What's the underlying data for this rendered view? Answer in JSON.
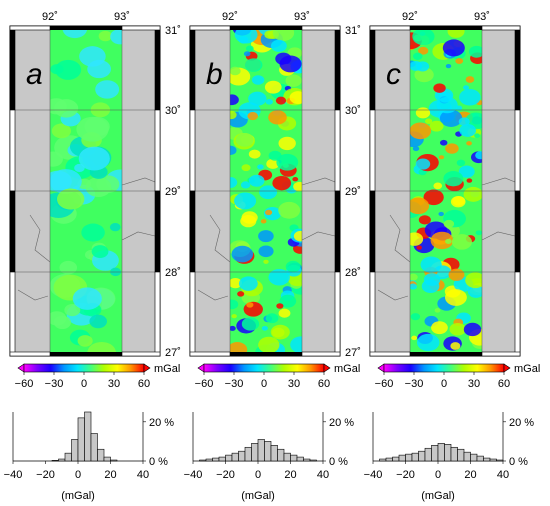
{
  "panels": [
    {
      "letter": "a",
      "lon_labels": [
        "92˚",
        "93˚"
      ],
      "show_lat_labels": true,
      "variance": "low"
    },
    {
      "letter": "b",
      "lon_labels": [
        "92˚",
        "93˚"
      ],
      "show_lat_labels": true,
      "variance": "high"
    },
    {
      "letter": "c",
      "lon_labels": [
        "92˚",
        "93˚"
      ],
      "show_lat_labels": false,
      "variance": "high"
    }
  ],
  "lat_labels": [
    "31˚",
    "30˚",
    "29˚",
    "28˚",
    "27˚"
  ],
  "colorbar": {
    "unit": "mGal",
    "ticks": [
      "−60",
      "−30",
      "0",
      "30",
      "60"
    ],
    "colors": [
      "#ff00ff",
      "#7a00ff",
      "#1a00ff",
      "#0096ff",
      "#00e6ff",
      "#40ff80",
      "#b0ff00",
      "#ffff00",
      "#ff9600",
      "#ff0000"
    ]
  },
  "histograms": [
    {
      "x_ticks": [
        "−40",
        "−20",
        "0",
        "20",
        "40"
      ],
      "y_ticks": [
        "20 %",
        "0 %"
      ],
      "xlabel": "(mGal)",
      "bin_edges": [
        -40,
        -36,
        -32,
        -28,
        -24,
        -20,
        -16,
        -12,
        -8,
        -4,
        0,
        4,
        8,
        12,
        16,
        20,
        24,
        28,
        32,
        36,
        40
      ],
      "values": [
        0,
        0,
        0,
        0,
        0,
        0,
        0.3,
        1,
        4,
        11,
        22,
        25,
        14,
        6,
        2,
        0.5,
        0,
        0,
        0,
        0
      ]
    },
    {
      "x_ticks": [
        "−40",
        "−20",
        "0",
        "20",
        "40"
      ],
      "y_ticks": [
        "20 %",
        "0 %"
      ],
      "xlabel": "(mGal)",
      "bin_edges": [
        -40,
        -36,
        -32,
        -28,
        -24,
        -20,
        -16,
        -12,
        -8,
        -4,
        0,
        4,
        8,
        12,
        16,
        20,
        24,
        28,
        32,
        36,
        40
      ],
      "values": [
        0,
        0.5,
        1,
        1.5,
        2,
        3,
        4,
        5,
        7,
        9,
        11,
        10,
        8,
        6,
        4,
        3,
        2,
        1,
        0.5,
        0
      ]
    },
    {
      "x_ticks": [
        "−40",
        "−20",
        "0",
        "20",
        "40"
      ],
      "y_ticks": [
        "20 %",
        "0 %"
      ],
      "xlabel": "(mGal)",
      "bin_edges": [
        -40,
        -36,
        -32,
        -28,
        -24,
        -20,
        -16,
        -12,
        -8,
        -4,
        0,
        4,
        8,
        12,
        16,
        20,
        24,
        28,
        32,
        36,
        40
      ],
      "values": [
        0,
        1,
        1.5,
        2,
        3,
        3.5,
        4,
        5,
        6.5,
        8,
        9,
        8.5,
        7,
        6,
        4.5,
        3.5,
        2.5,
        1.5,
        1,
        0.5
      ]
    }
  ],
  "chart_data": [
    {
      "type": "bar",
      "xlabel": "(mGal)",
      "ylabel": "",
      "x_range": [
        -40,
        40
      ],
      "y_range": [
        0,
        25
      ],
      "categories": [
        "-40..-36",
        "-36..-32",
        "-32..-28",
        "-28..-24",
        "-24..-20",
        "-20..-16",
        "-16..-12",
        "-12..-8",
        "-8..-4",
        "-4..0",
        "0..4",
        "4..8",
        "8..12",
        "12..16",
        "16..20",
        "20..24",
        "24..28",
        "28..32",
        "32..36",
        "36..40"
      ],
      "values": [
        0,
        0,
        0,
        0,
        0,
        0,
        0.3,
        1,
        4,
        11,
        22,
        25,
        14,
        6,
        2,
        0.5,
        0,
        0,
        0,
        0
      ]
    },
    {
      "type": "bar",
      "xlabel": "(mGal)",
      "ylabel": "",
      "x_range": [
        -40,
        40
      ],
      "y_range": [
        0,
        25
      ],
      "categories": [
        "-40..-36",
        "-36..-32",
        "-32..-28",
        "-28..-24",
        "-24..-20",
        "-20..-16",
        "-16..-12",
        "-12..-8",
        "-8..-4",
        "-4..0",
        "0..4",
        "4..8",
        "8..12",
        "12..16",
        "16..20",
        "20..24",
        "24..28",
        "28..32",
        "32..36",
        "36..40"
      ],
      "values": [
        0,
        0.5,
        1,
        1.5,
        2,
        3,
        4,
        5,
        7,
        9,
        11,
        10,
        8,
        6,
        4,
        3,
        2,
        1,
        0.5,
        0
      ]
    },
    {
      "type": "bar",
      "xlabel": "(mGal)",
      "ylabel": "",
      "x_range": [
        -40,
        40
      ],
      "y_range": [
        0,
        25
      ],
      "categories": [
        "-40..-36",
        "-36..-32",
        "-32..-28",
        "-28..-24",
        "-24..-20",
        "-20..-16",
        "-16..-12",
        "-12..-8",
        "-8..-4",
        "-4..0",
        "0..4",
        "4..8",
        "8..12",
        "12..16",
        "16..20",
        "20..24",
        "24..28",
        "28..32",
        "32..36",
        "36..40"
      ],
      "values": [
        0,
        1,
        1.5,
        2,
        3,
        3.5,
        4,
        5,
        6.5,
        8,
        9,
        8.5,
        7,
        6,
        4.5,
        3.5,
        2.5,
        1.5,
        1,
        0.5
      ]
    }
  ]
}
